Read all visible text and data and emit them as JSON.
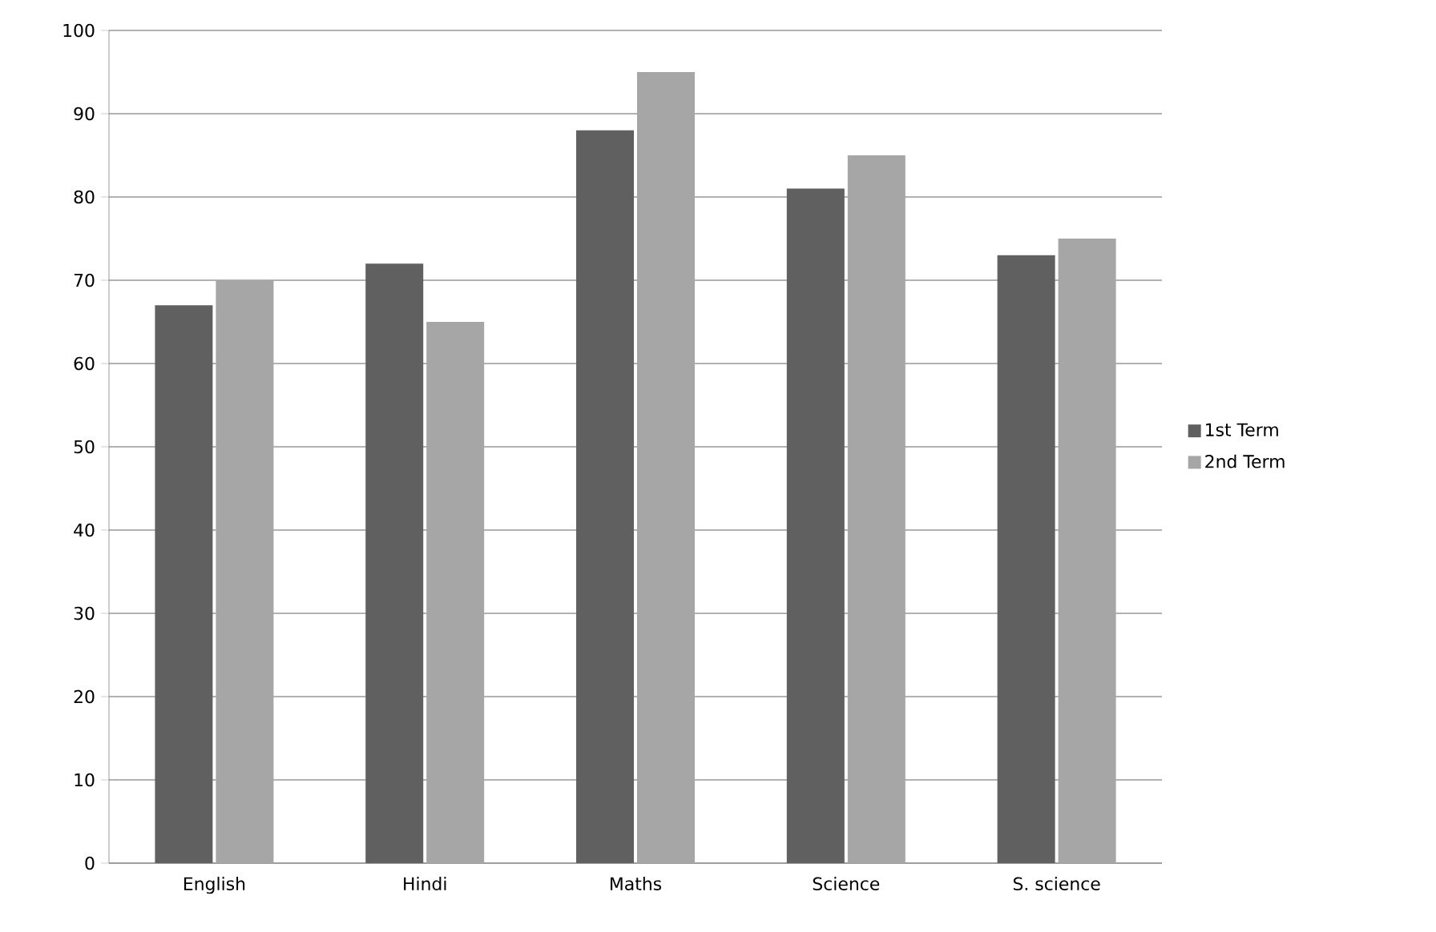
{
  "chart_data": {
    "type": "bar",
    "categories": [
      "English",
      "Hindi",
      "Maths",
      "Science",
      "S. science"
    ],
    "series": [
      {
        "name": "1st Term",
        "color": "#606060",
        "values": [
          67,
          72,
          88,
          81,
          73
        ]
      },
      {
        "name": "2nd Term",
        "color": "#a6a6a6",
        "values": [
          70,
          65,
          95,
          85,
          75
        ]
      }
    ],
    "ylim": [
      0,
      100
    ],
    "yticks": [
      0,
      10,
      20,
      30,
      40,
      50,
      60,
      70,
      80,
      90,
      100
    ],
    "grid": "y",
    "legend": "right"
  }
}
